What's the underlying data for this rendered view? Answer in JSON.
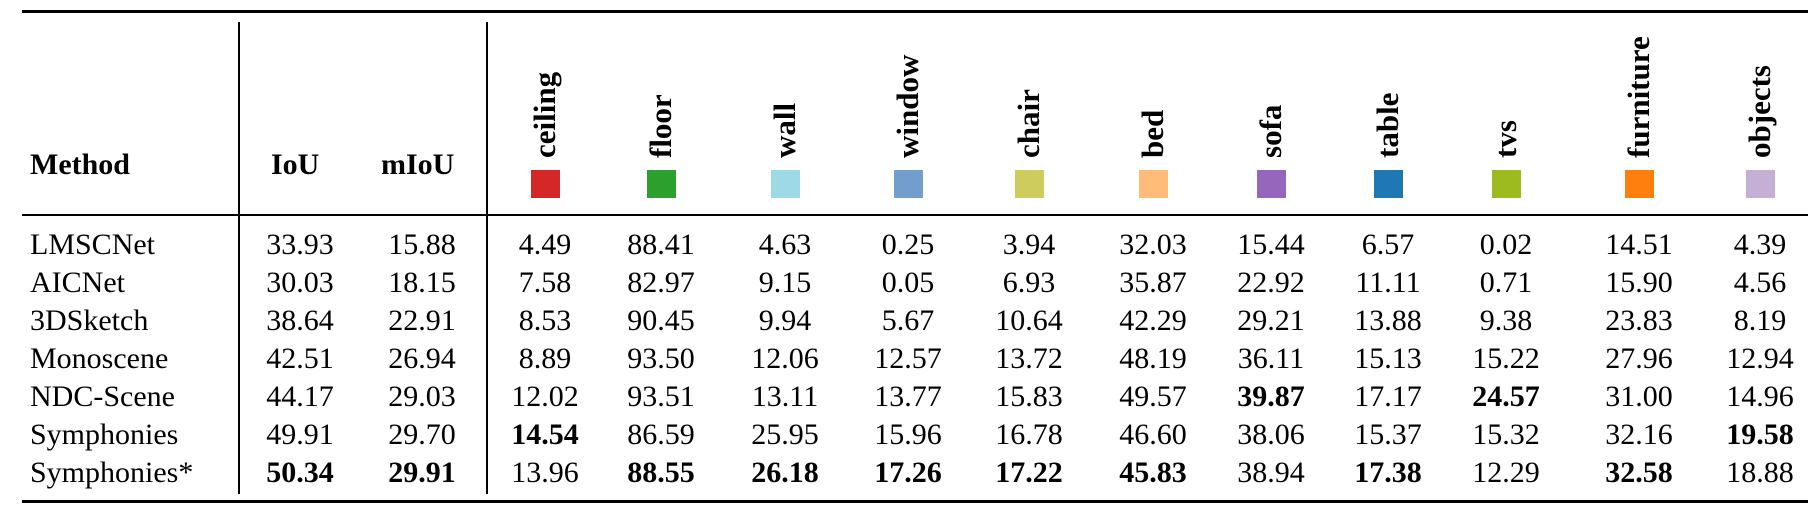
{
  "table": {
    "headers": {
      "method": "Method",
      "iou": "IoU",
      "miou": "mIoU"
    },
    "classes": [
      {
        "name": "ceiling",
        "color": "#d62728"
      },
      {
        "name": "floor",
        "color": "#2ca02c"
      },
      {
        "name": "wall",
        "color": "#9edae5"
      },
      {
        "name": "window",
        "color": "#729ece"
      },
      {
        "name": "chair",
        "color": "#cdcc5d"
      },
      {
        "name": "bed",
        "color": "#ffbb78"
      },
      {
        "name": "sofa",
        "color": "#9467bd"
      },
      {
        "name": "table",
        "color": "#1f77b4"
      },
      {
        "name": "tvs",
        "color": "#9dbb1f"
      },
      {
        "name": "furniture",
        "color": "#ff7f0e"
      },
      {
        "name": "objects",
        "color": "#c5b0d5"
      }
    ],
    "rows": [
      {
        "method": "LMSCNet",
        "values": [
          "33.93",
          "15.88",
          "4.49",
          "88.41",
          "4.63",
          "0.25",
          "3.94",
          "32.03",
          "15.44",
          "6.57",
          "0.02",
          "14.51",
          "4.39"
        ],
        "bold": []
      },
      {
        "method": "AICNet",
        "values": [
          "30.03",
          "18.15",
          "7.58",
          "82.97",
          "9.15",
          "0.05",
          "6.93",
          "35.87",
          "22.92",
          "11.11",
          "0.71",
          "15.90",
          "4.56"
        ],
        "bold": []
      },
      {
        "method": "3DSketch",
        "values": [
          "38.64",
          "22.91",
          "8.53",
          "90.45",
          "9.94",
          "5.67",
          "10.64",
          "42.29",
          "29.21",
          "13.88",
          "9.38",
          "23.83",
          "8.19"
        ],
        "bold": []
      },
      {
        "method": "Monoscene",
        "values": [
          "42.51",
          "26.94",
          "8.89",
          "93.50",
          "12.06",
          "12.57",
          "13.72",
          "48.19",
          "36.11",
          "15.13",
          "15.22",
          "27.96",
          "12.94"
        ],
        "bold": []
      },
      {
        "method": "NDC-Scene",
        "values": [
          "44.17",
          "29.03",
          "12.02",
          "93.51",
          "13.11",
          "13.77",
          "15.83",
          "49.57",
          "39.87",
          "17.17",
          "24.57",
          "31.00",
          "14.96"
        ],
        "bold": [
          8,
          10
        ]
      },
      {
        "method": "Symphonies",
        "values": [
          "49.91",
          "29.70",
          "14.54",
          "86.59",
          "25.95",
          "15.96",
          "16.78",
          "46.60",
          "38.06",
          "15.37",
          "15.32",
          "32.16",
          "19.58"
        ],
        "bold": [
          2,
          12
        ]
      },
      {
        "method": "Symphonies*",
        "values": [
          "50.34",
          "29.91",
          "13.96",
          "88.55",
          "26.18",
          "17.26",
          "17.22",
          "45.83",
          "38.94",
          "17.38",
          "12.29",
          "32.58",
          "18.88"
        ],
        "bold": [
          0,
          1,
          3,
          4,
          5,
          6,
          7,
          9,
          11
        ]
      }
    ]
  }
}
